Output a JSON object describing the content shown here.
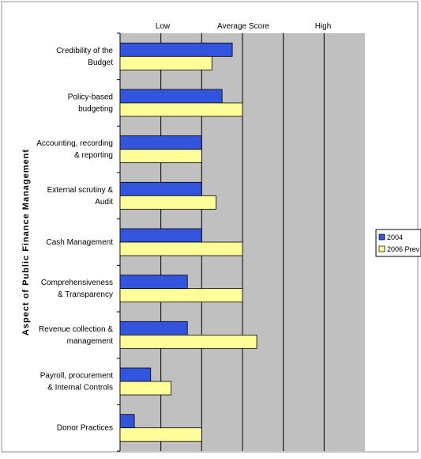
{
  "chart_data": {
    "type": "bar",
    "orientation": "horizontal",
    "title": "",
    "xlabel_top": [
      "Low",
      "Average Score",
      "High"
    ],
    "ylabel": "Aspect of Public Finance Management",
    "categories": [
      [
        "Credibility of the",
        "Budget"
      ],
      [
        "Policy-based",
        "budgeting"
      ],
      [
        "Accounting, recording",
        "& reporting"
      ],
      [
        "External scrutiny &",
        "Audit"
      ],
      [
        "Cash Management"
      ],
      [
        "Comprehensiveness",
        "& Transparency"
      ],
      [
        "Revenue collection &",
        "management"
      ],
      [
        "Payroll, procurement",
        "& Internal Controls"
      ],
      [
        "Donor Practices"
      ]
    ],
    "series": [
      {
        "name": "2004",
        "color": "#3355dd",
        "values": [
          3.75,
          3.5,
          3.0,
          3.0,
          3.0,
          2.65,
          2.65,
          1.75,
          1.35
        ]
      },
      {
        "name": "2006 Prev",
        "color": "#ffff99",
        "values": [
          3.25,
          4.0,
          3.0,
          3.35,
          4.0,
          4.0,
          4.35,
          2.25,
          3.0
        ]
      }
    ],
    "xlim": [
      1,
      7
    ],
    "grid": true,
    "plot_background": "#c0c0c0",
    "legend_position": "right"
  }
}
